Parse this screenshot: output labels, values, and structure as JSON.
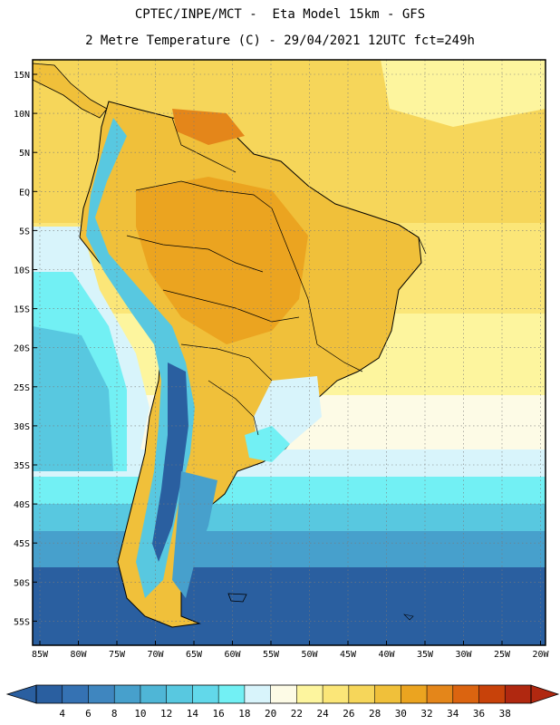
{
  "header": {
    "line1": "CPTEC/INPE/MCT -  Eta Model 15km - GFS",
    "line2": "2 Metre Temperature (C) - 29/04/2021 12UTC fct=249h"
  },
  "map": {
    "lat_labels": [
      "15N",
      "10N",
      "5N",
      "EQ",
      "5S",
      "10S",
      "15S",
      "20S",
      "25S",
      "30S",
      "35S",
      "40S",
      "45S",
      "50S",
      "55S"
    ],
    "lon_labels": [
      "85W",
      "80W",
      "75W",
      "70W",
      "65W",
      "60W",
      "55W",
      "50W",
      "45W",
      "40W",
      "35W",
      "30W",
      "25W",
      "20W"
    ]
  },
  "colorbar": {
    "labels": [
      "4",
      "6",
      "8",
      "10",
      "12",
      "14",
      "16",
      "18",
      "20",
      "22",
      "24",
      "26",
      "28",
      "30",
      "32",
      "34",
      "36",
      "38"
    ],
    "colors": [
      "#2a5fa0",
      "#3572b3",
      "#3f86bf",
      "#47a0cc",
      "#4fb6d6",
      "#58c8e0",
      "#62d8ea",
      "#72f0f4",
      "#d8f4fb",
      "#fdfbe6",
      "#fdf59e",
      "#fbe678",
      "#f6d65a",
      "#f0c03a",
      "#eba420",
      "#e4861a",
      "#db6410",
      "#c8420a",
      "#b02810"
    ]
  }
}
